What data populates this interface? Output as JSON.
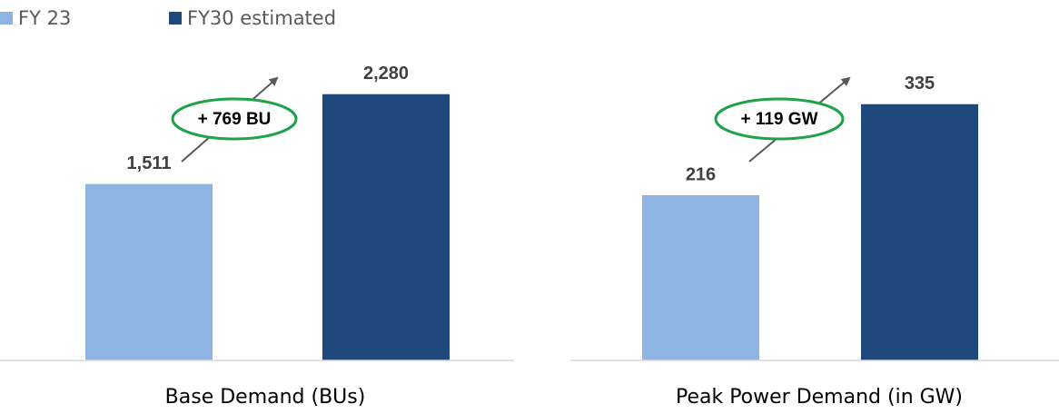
{
  "legend": [
    {
      "name": "FY 23",
      "color": "#8eb4e3"
    },
    {
      "name": "FY30 estimated",
      "color": "#1f497d"
    }
  ],
  "chart_data": [
    {
      "type": "bar",
      "categories": [
        "Base Demand (BUs)"
      ],
      "ylim": [
        0,
        2620
      ],
      "annotation": "+ 769 BU",
      "series": [
        {
          "values": [
            1511
          ],
          "value_labels": [
            "1,511"
          ]
        },
        {
          "values": [
            2280
          ],
          "value_labels": [
            "2,280"
          ]
        }
      ]
    },
    {
      "type": "bar",
      "categories": [
        "Peak Power Demand (in GW)"
      ],
      "ylim": [
        0,
        400
      ],
      "annotation": "+ 119 GW",
      "series": [
        {
          "values": [
            216
          ]
        },
        {
          "values": [
            335
          ]
        }
      ]
    }
  ]
}
